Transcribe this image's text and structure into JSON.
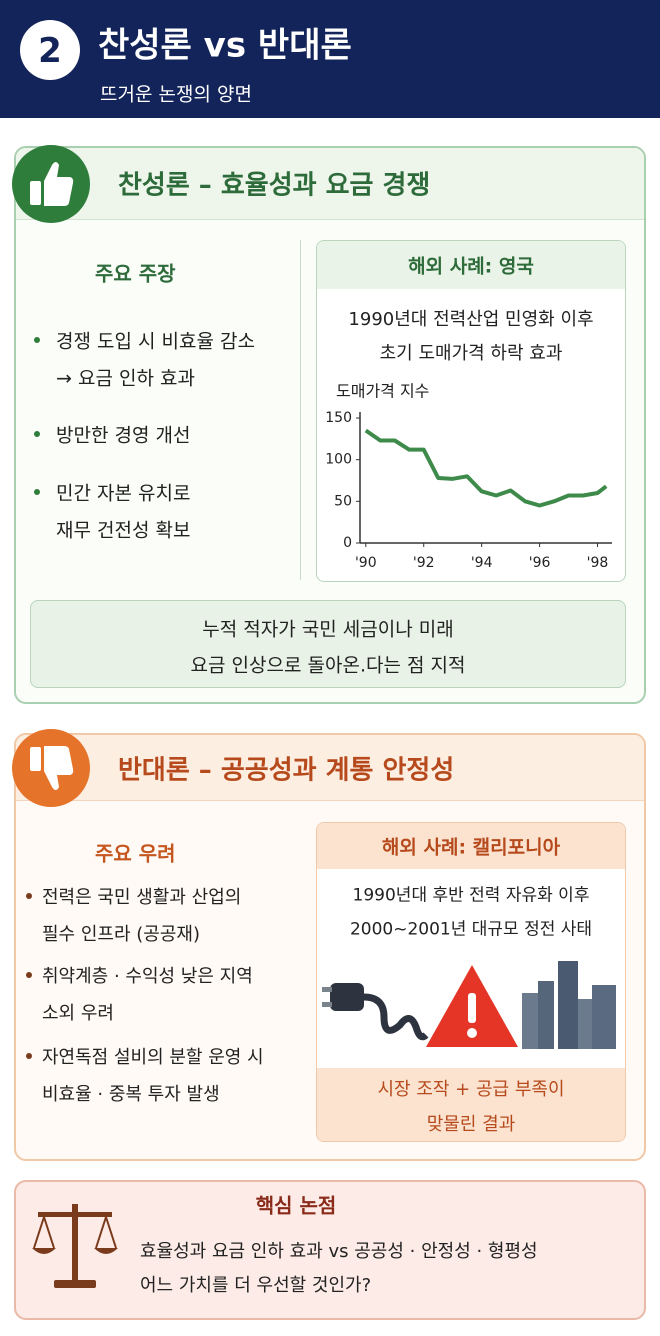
{
  "header": {
    "number": "2",
    "title": "찬성론 vs 반대론",
    "subtitle": "뜨거운 논쟁의 양면"
  },
  "pro": {
    "title": "찬성론 – 효율성과 요금 경쟁",
    "claims_title": "주요 주장",
    "claims": [
      [
        "경쟁 도입 시 비효율 감소",
        "→ 요금 인하 효과"
      ],
      [
        "방만한 경영 개선"
      ],
      [
        "민간 자본 유치로",
        "재무 건전성 확보"
      ]
    ],
    "case_title": "해외 사례: 영국",
    "case_text": [
      "1990년대 전력산업 민영화 이후",
      "초기 도매가격 하락 효과"
    ],
    "note": [
      "누적 적자가 국민 세금이나 미래",
      "요금 인상으로 돌아온.다는 점 지적"
    ]
  },
  "chart_data": {
    "type": "line",
    "y_label": "도매가격 지수",
    "x": [
      1990,
      1990.5,
      1991,
      1991.5,
      1992,
      1992.5,
      1993,
      1993.5,
      1994,
      1994.5,
      1995,
      1995.5,
      1996,
      1996.5,
      1997,
      1997.5,
      1998,
      1998.3
    ],
    "values": [
      135,
      123,
      123,
      112,
      112,
      78,
      77,
      80,
      62,
      57,
      63,
      50,
      45,
      50,
      57,
      57,
      60,
      68
    ],
    "color": "#3d8a4a",
    "xlim": [
      1989.8,
      1998.5
    ],
    "ylim": [
      0,
      150
    ],
    "xticks": [
      {
        "value": 1990,
        "label": "'90"
      },
      {
        "value": 1992,
        "label": "'92"
      },
      {
        "value": 1994,
        "label": "'94"
      },
      {
        "value": 1996,
        "label": "'96"
      },
      {
        "value": 1998,
        "label": "'98"
      }
    ],
    "yticks": [
      0,
      50,
      100,
      150
    ]
  },
  "con": {
    "title": "반대론 – 공공성과 계통 안정성",
    "concerns_title": "주요 우려",
    "concerns": [
      [
        "전력은 국민 생활과 산업의",
        "필수 인프라 (공공재)"
      ],
      [
        "취약계층 · 수익성 낮은 지역",
        "소외 우려"
      ],
      [
        "자연독점 설비의 분할 운영 시",
        "비효율 · 중복 투자 발생"
      ]
    ],
    "case_title": "해외 사례: 캘리포니아",
    "case_text": [
      "1990년대 후반 전력 자유화 이후",
      "2000~2001년 대규모 정전 사태"
    ],
    "result": [
      "시장 조작 + 공급 부족이",
      "맞물린 결과"
    ]
  },
  "key": {
    "title": "핵심 논점",
    "text": [
      "효율성과 요금 인하 효과 vs 공공성 · 안정성 · 형평성",
      "어느 가치를 더 우선할 것인가?"
    ]
  }
}
